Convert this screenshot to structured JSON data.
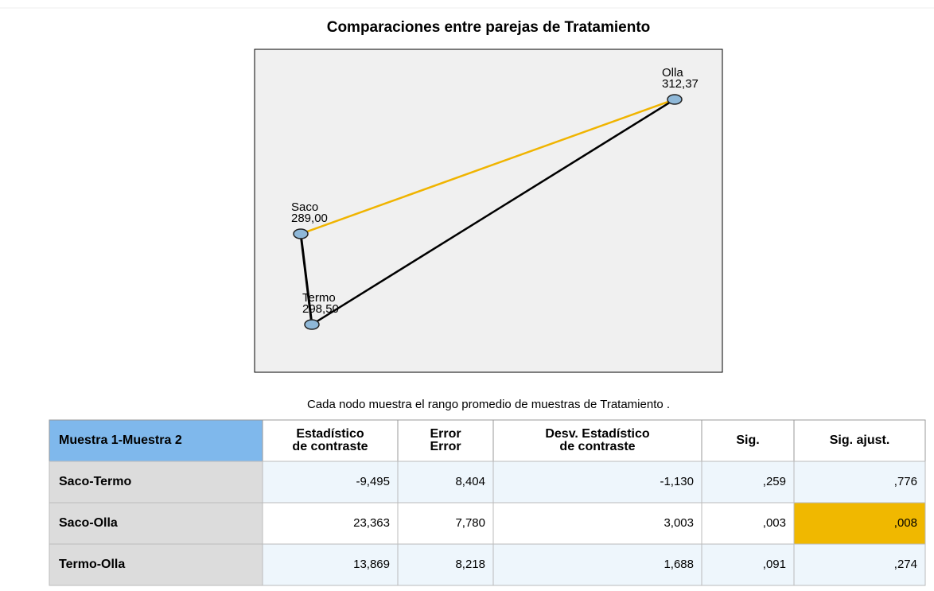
{
  "title": "Comparaciones entre parejas de Tratamiento",
  "nodes": [
    {
      "label": "Olla",
      "value": "312,37"
    },
    {
      "label": "Saco",
      "value": "289,00"
    },
    {
      "label": "Termo",
      "value": "298,50"
    }
  ],
  "edges": [
    {
      "from": 1,
      "to": 0,
      "color": "#f0b400"
    },
    {
      "from": 2,
      "to": 0,
      "color": "#000000"
    },
    {
      "from": 1,
      "to": 2,
      "color": "#000000"
    }
  ],
  "caption": "Cada nodo muestra el rango promedio de muestras de Tratamiento .",
  "table": {
    "header": [
      [
        "Muestra 1-Muestra 2"
      ],
      [
        "Estadístico",
        "de contraste"
      ],
      [
        "Error",
        "Error"
      ],
      [
        "Desv. Estadístico",
        "de contraste"
      ],
      [
        "Sig."
      ],
      [
        "Sig. ajust."
      ]
    ],
    "rows": [
      [
        "Saco-Termo",
        "-9,495",
        "8,404",
        "-1,130",
        ",259",
        ",776"
      ],
      [
        "Saco-Olla",
        "23,363",
        "7,780",
        "3,003",
        ",003",
        ",008"
      ],
      [
        "Termo-Olla",
        "13,869",
        "8,218",
        "1,688",
        ",091",
        ",274"
      ]
    ],
    "highlight": {
      "row": 1,
      "col": 5,
      "color": "#f0b800"
    }
  }
}
